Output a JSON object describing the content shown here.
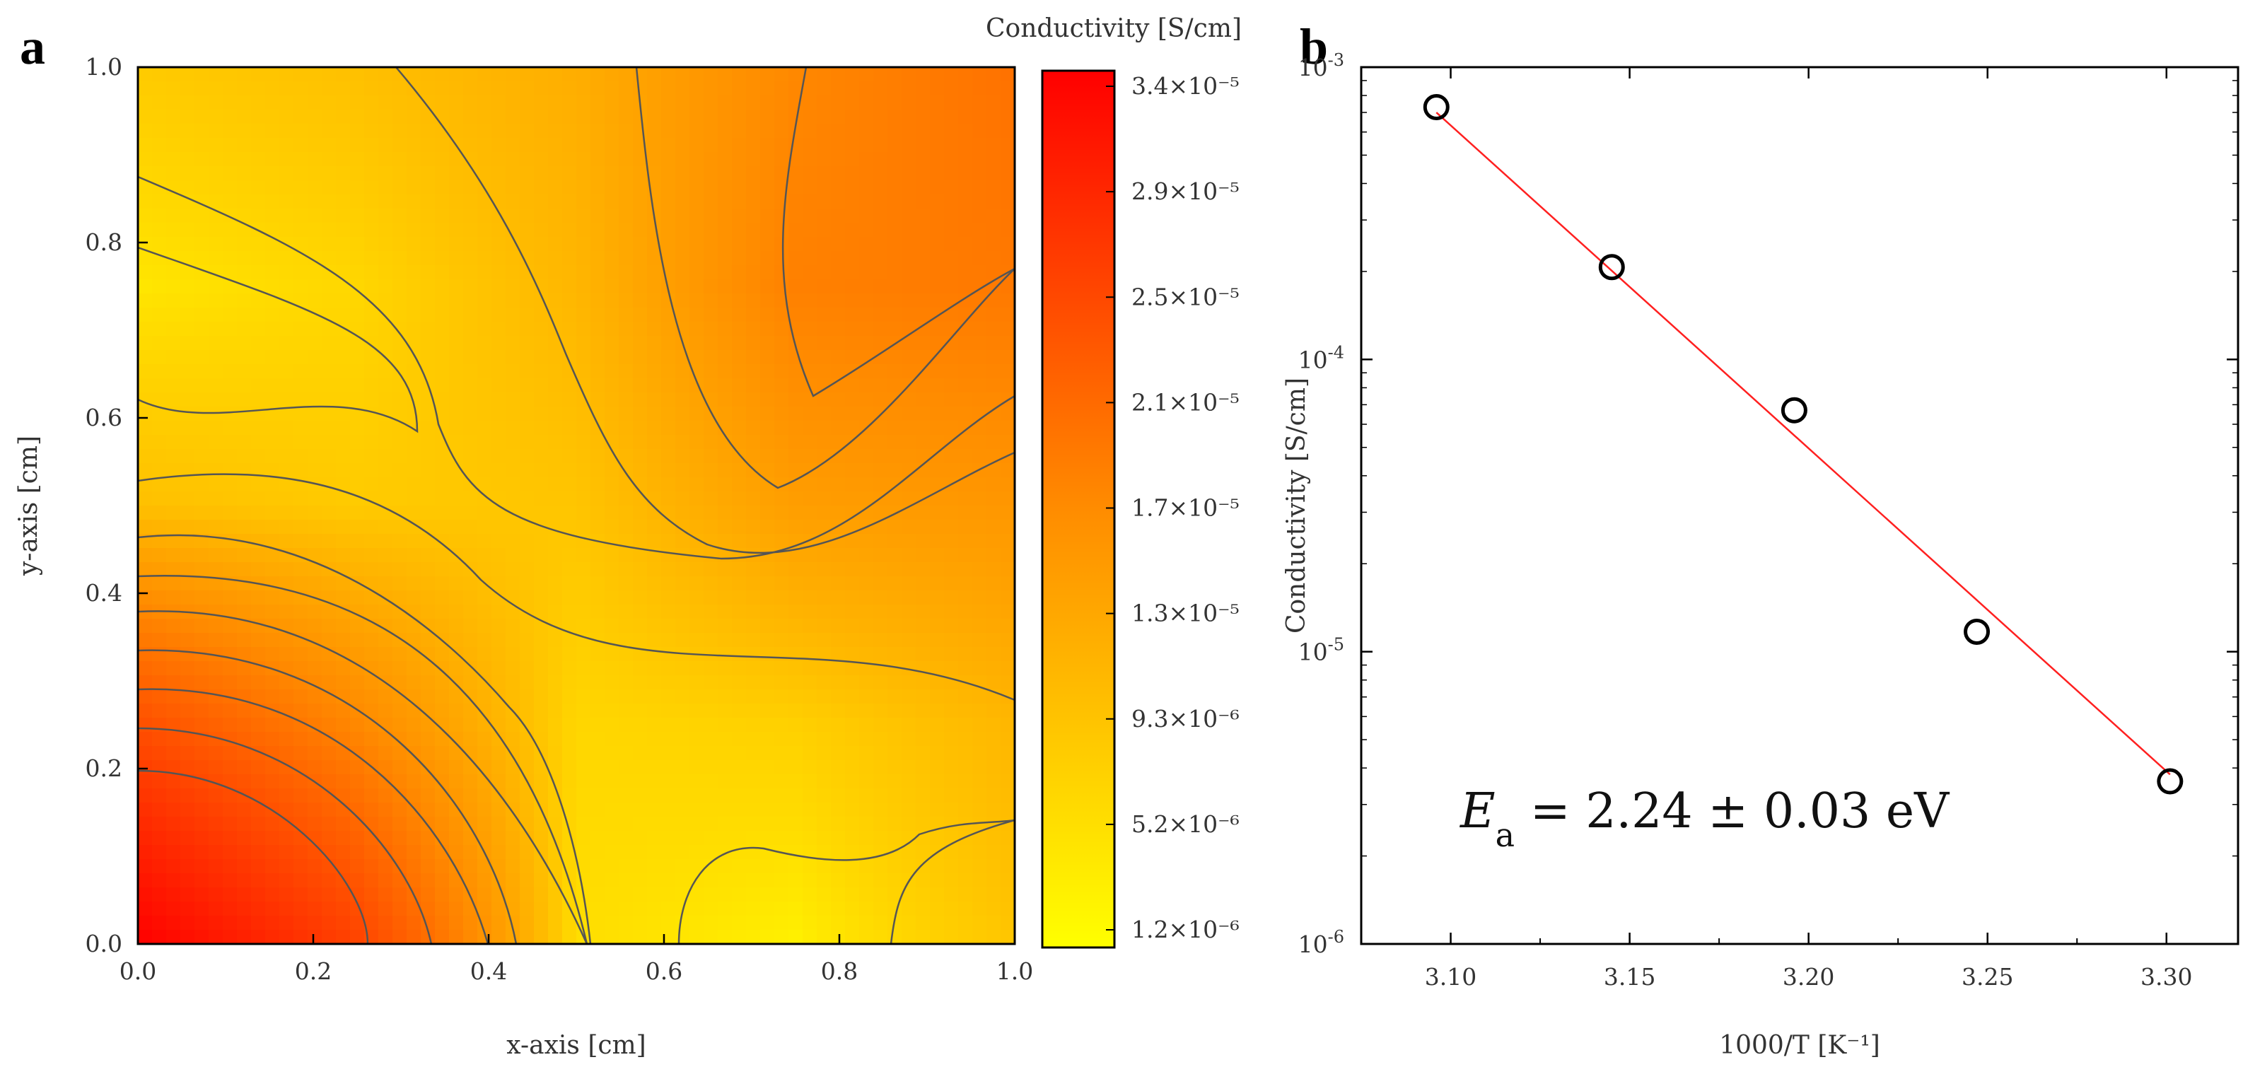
{
  "chart_data": [
    {
      "panel": "a",
      "type": "heatmap",
      "title": "Conductivity [S/cm]",
      "xlabel": "x-axis [cm]",
      "ylabel": "y-axis [cm]",
      "xlim": [
        0.0,
        1.0
      ],
      "ylim": [
        0.0,
        1.0
      ],
      "x_ticks": [
        "0.0",
        "0.2",
        "0.4",
        "0.6",
        "0.8",
        "1.0"
      ],
      "y_ticks": [
        "0.0",
        "0.2",
        "0.4",
        "0.6",
        "0.8",
        "1.0"
      ],
      "colorbar": {
        "labels": [
          "3.4×10⁻⁵",
          "2.9×10⁻⁵",
          "2.5×10⁻⁵",
          "2.1×10⁻⁵",
          "1.7×10⁻⁵",
          "1.3×10⁻⁵",
          "9.3×10⁻⁶",
          "5.2×10⁻⁶",
          "1.2×10⁻⁶"
        ],
        "colors": [
          "#ff0000",
          "#ffff00"
        ]
      },
      "field": {
        "x": [
          0.0,
          0.25,
          0.5,
          0.75,
          1.0
        ],
        "y": [
          0.0,
          0.25,
          0.5,
          0.75,
          1.0
        ],
        "z": [
          [
            3.4e-05,
            2.2e-05,
            2.5e-06,
            1.5e-06,
            4.5e-06
          ],
          [
            2e-05,
            1.2e-05,
            3e-06,
            3.5e-06,
            6e-06
          ],
          [
            5e-06,
            4e-06,
            4.5e-06,
            9e-06,
            1e-05
          ],
          [
            2e-06,
            3e-06,
            6e-06,
            1.3e-05,
            1.4e-05
          ],
          [
            4e-06,
            5e-06,
            7e-06,
            1.2e-05,
            1.5e-05
          ]
        ]
      }
    },
    {
      "panel": "b",
      "type": "scatter",
      "xlabel": "1000/T [K⁻¹]",
      "ylabel": "Conductivity [S/cm]",
      "yscale": "log",
      "xlim": [
        3.075,
        3.32
      ],
      "ylim": [
        1e-06,
        0.001
      ],
      "x_ticks": [
        "3.10",
        "3.15",
        "3.20",
        "3.25",
        "3.30"
      ],
      "y_ticks": [
        {
          "base": "10",
          "exp": "-3"
        },
        {
          "base": "10",
          "exp": "-4"
        },
        {
          "base": "10",
          "exp": "-5"
        },
        {
          "base": "10",
          "exp": "-6"
        }
      ],
      "x": [
        3.096,
        3.145,
        3.196,
        3.247,
        3.301
      ],
      "y": [
        0.00073,
        0.000207,
        6.7e-05,
        1.17e-05,
        3.6e-06
      ],
      "fit": {
        "x": [
          3.096,
          3.301
        ],
        "y": [
          0.0007,
          3.8e-06
        ],
        "color": "#ff2020"
      },
      "annotation": {
        "symbol": "E",
        "subscript": "a",
        "text": " = 2.24 ± 0.03 eV"
      }
    }
  ],
  "panel_labels": {
    "a": "a",
    "b": "b"
  }
}
